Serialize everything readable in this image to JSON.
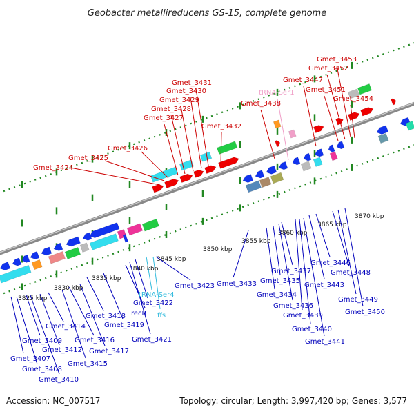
{
  "title": "Geobacter metallireducens GS-15, complete genome",
  "accession_text": "Accession: NC_007517",
  "summary_text": "Topology: circular; Length: 3,997,420 bp; Genes: 3,577",
  "colors": {
    "forward_label": "#cc0000",
    "reverse_label": "#0000bb",
    "trna_forward": "#f0a0c8",
    "rna_reverse": "#33bbdd",
    "backbone": "#888888",
    "tick": "#228822"
  },
  "axis": {
    "unit": "kbp",
    "ticks": [
      {
        "text": "3825 kbp"
      },
      {
        "text": "3830 kbp"
      },
      {
        "text": "3835 kbp"
      },
      {
        "text": "3840 kbp"
      },
      {
        "text": "3845 kbp"
      },
      {
        "text": "3850 kbp"
      },
      {
        "text": "3855 kbp"
      },
      {
        "text": "3860 kbp"
      },
      {
        "text": "3865 kbp"
      },
      {
        "text": "3870 kbp"
      }
    ]
  },
  "forward_labels": [
    {
      "text": "Gmet_3424"
    },
    {
      "text": "Gmet_3425"
    },
    {
      "text": "Gmet_3426"
    },
    {
      "text": "Gmet_3427"
    },
    {
      "text": "Gmet_3428"
    },
    {
      "text": "Gmet_3429"
    },
    {
      "text": "Gmet_3430"
    },
    {
      "text": "Gmet_3431"
    },
    {
      "text": "Gmet_3432"
    },
    {
      "text": "Gmet_3438"
    },
    {
      "text": "tRNA-Ser1"
    },
    {
      "text": "Gmet_3447"
    },
    {
      "text": "Gmet_3451"
    },
    {
      "text": "Gmet_3452"
    },
    {
      "text": "Gmet_3453"
    },
    {
      "text": "Gmet_3454"
    }
  ],
  "reverse_labels": [
    {
      "text": "Gmet_3407"
    },
    {
      "text": "Gmet_3408"
    },
    {
      "text": "Gmet_3409"
    },
    {
      "text": "Gmet_3410"
    },
    {
      "text": "Gmet_3412"
    },
    {
      "text": "Gmet_3414"
    },
    {
      "text": "Gmet_3415"
    },
    {
      "text": "Gmet_3416"
    },
    {
      "text": "Gmet_3417"
    },
    {
      "text": "Gmet_3418"
    },
    {
      "text": "Gmet_3419"
    },
    {
      "text": "recR"
    },
    {
      "text": "Gmet_3421"
    },
    {
      "text": "Gmet_3422"
    },
    {
      "text": "tRNA-Ser4"
    },
    {
      "text": "ffs"
    },
    {
      "text": "Gmet_3423"
    },
    {
      "text": "Gmet_3433"
    },
    {
      "text": "Gmet_3434"
    },
    {
      "text": "Gmet_3435"
    },
    {
      "text": "Gmet_3436"
    },
    {
      "text": "Gmet_3437"
    },
    {
      "text": "Gmet_3439"
    },
    {
      "text": "Gmet_3440"
    },
    {
      "text": "Gmet_3441"
    },
    {
      "text": "Gmet_3443"
    },
    {
      "text": "Gmet_3446"
    },
    {
      "text": "Gmet_3448"
    },
    {
      "text": "Gmet_3449"
    },
    {
      "text": "Gmet_3450"
    }
  ]
}
